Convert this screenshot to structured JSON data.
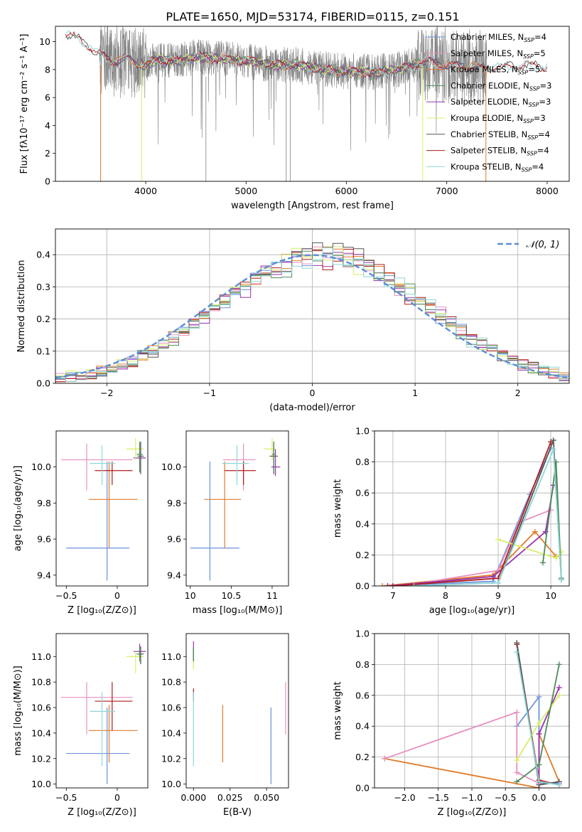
{
  "figure_title": "PLATE=1650, MJD=53174, FIBERID=0115, z=0.151",
  "colors": {
    "blue": "#6a93dc",
    "orange": "#e07b2a",
    "pink": "#e890bf",
    "purple": "#9a32b0",
    "red": "#b01c1c",
    "yellow": "#d8ee66",
    "grey": "#555555",
    "green": "#4d8a5a",
    "cyan": "#8fd6d6",
    "gray_data": "#808080",
    "dashed": "#5b8ed6",
    "grid": "#b0b0b0"
  },
  "chart_data": [
    {
      "id": "spectrum",
      "type": "line",
      "xlabel": "wavelength [Angstrom, rest frame]",
      "ylabel": "Flux [fλ10⁻¹⁷ erg cm⁻² s⁻¹ A⁻¹]",
      "xlim": [
        3100,
        8220
      ],
      "ylim": [
        0,
        11.1
      ],
      "xticks": [
        4000,
        5000,
        6000,
        7000,
        8000
      ],
      "yticks": [
        0,
        2,
        4,
        6,
        8,
        10
      ],
      "grid": false,
      "legend_position": "top-right",
      "legend": [
        {
          "label": "Chabrier MILES, N",
          "sub": "SSP",
          "tail": "=4",
          "color": "blue"
        },
        {
          "label": "Salpeter MILES, N",
          "sub": "SSP",
          "tail": "=5",
          "color": "pink"
        },
        {
          "label": "Kroupa MILES, N",
          "sub": "SSP",
          "tail": "=5",
          "color": "orange"
        },
        {
          "label": "Chabrier ELODIE, N",
          "sub": "SSP",
          "tail": "=3",
          "color": "green"
        },
        {
          "label": "Salpeter ELODIE, N",
          "sub": "SSP",
          "tail": "=3",
          "color": "purple"
        },
        {
          "label": "Kroupa ELODIE, N",
          "sub": "SSP",
          "tail": "=3",
          "color": "yellow"
        },
        {
          "label": "Chabrier STELIB, N",
          "sub": "SSP",
          "tail": "=4",
          "color": "grey"
        },
        {
          "label": "Salpeter STELIB, N",
          "sub": "SSP",
          "tail": "=4",
          "color": "red"
        },
        {
          "label": "Kroupa STELIB, N",
          "sub": "SSP",
          "tail": "=4",
          "color": "cyan"
        }
      ],
      "observed_range": [
        3540,
        7400
      ],
      "model_ranges": {
        "MILES": [
          3540,
          7400
        ],
        "ELODIE": [
          3950,
          6750
        ],
        "STELIB": [
          3200,
          8000
        ]
      },
      "continuum": [
        [
          3200,
          10.6
        ],
        [
          3300,
          10.3
        ],
        [
          3400,
          9.9
        ],
        [
          3550,
          9.0
        ],
        [
          3700,
          8.6
        ],
        [
          3800,
          8.8
        ],
        [
          3900,
          8.5
        ],
        [
          4000,
          8.3
        ],
        [
          4100,
          8.7
        ],
        [
          4300,
          8.6
        ],
        [
          4500,
          8.9
        ],
        [
          4700,
          8.8
        ],
        [
          4900,
          8.7
        ],
        [
          5100,
          8.5
        ],
        [
          5300,
          8.3
        ],
        [
          5500,
          8.4
        ],
        [
          5700,
          8.1
        ],
        [
          5900,
          7.9
        ],
        [
          6100,
          7.9
        ],
        [
          6300,
          7.8
        ],
        [
          6500,
          8.0
        ],
        [
          6700,
          8.4
        ],
        [
          6800,
          8.6
        ],
        [
          7000,
          8.3
        ],
        [
          7200,
          8.2
        ],
        [
          7400,
          8.1
        ],
        [
          7600,
          8.2
        ],
        [
          7800,
          8.3
        ],
        [
          8000,
          8.2
        ]
      ]
    },
    {
      "id": "residuals",
      "type": "histogram",
      "xlabel": "(data-model)/error",
      "ylabel": "Normed distribution",
      "xlim": [
        -2.5,
        2.5
      ],
      "ylim": [
        0,
        0.48
      ],
      "xticks": [
        -2,
        -1,
        0,
        1,
        2
      ],
      "yticks": [
        0,
        0.1,
        0.2,
        0.3,
        0.4
      ],
      "xtick_labels": [
        "−2",
        "−1",
        "0",
        "1",
        "2"
      ],
      "grid": true,
      "legend_position": "top-right",
      "legend": [
        {
          "label": "𝒩(0, 1)",
          "style": "dashed",
          "color": "dashed"
        }
      ],
      "bin_width": 0.1,
      "x_start": -2.5,
      "gaussian": {
        "mean": 0,
        "sigma": 1
      }
    },
    {
      "id": "age_vs_Z",
      "type": "errorbar",
      "xlabel": "Z [log₁₀(Z/Z⊙)]",
      "ylabel": "age  [log₁₀(age/yr)]",
      "xlim": [
        -0.6,
        0.3
      ],
      "ylim": [
        9.34,
        10.2
      ],
      "xticks": [
        -0.5,
        0.0
      ],
      "yticks": [
        9.4,
        9.6,
        9.8,
        10.0
      ],
      "grid": false,
      "points": [
        {
          "color": "blue",
          "x": -0.1,
          "xerr": [
            0.4,
            0.22
          ],
          "y": 9.55,
          "yerr": [
            0.18,
            0.48
          ]
        },
        {
          "color": "orange",
          "x": -0.08,
          "xerr": [
            0.2,
            0.28
          ],
          "y": 9.82,
          "yerr": [
            0.27,
            0.21
          ]
        },
        {
          "color": "pink",
          "x": -0.3,
          "xerr": [
            0.25,
            0.45
          ],
          "y": 10.04,
          "yerr": [
            0.17,
            0.09
          ]
        },
        {
          "color": "purple",
          "x": 0.22,
          "xerr": [
            0.06,
            0.06
          ],
          "y": 10.05,
          "yerr": [
            0.07,
            0.08
          ]
        },
        {
          "color": "red",
          "x": -0.05,
          "xerr": [
            0.17,
            0.2
          ],
          "y": 9.98,
          "yerr": [
            0.08,
            0.05
          ]
        },
        {
          "color": "yellow",
          "x": 0.18,
          "xerr": [
            0.09,
            0.08
          ],
          "y": 10.1,
          "yerr": [
            0.06,
            0.06
          ]
        },
        {
          "color": "grey",
          "x": 0.23,
          "xerr": [
            0.03,
            0.03
          ],
          "y": 10.06,
          "yerr": [
            0.1,
            0.08
          ]
        },
        {
          "color": "green",
          "x": 0.22,
          "xerr": [
            0.03,
            0.03
          ],
          "y": 10.07,
          "yerr": [
            0.1,
            0.07
          ]
        },
        {
          "color": "cyan",
          "x": -0.15,
          "xerr": [
            0.12,
            0.13
          ],
          "y": 10.02,
          "yerr": [
            0.12,
            0.1
          ]
        }
      ]
    },
    {
      "id": "age_vs_mass",
      "type": "errorbar",
      "xlabel": "mass [log₁₀(M/M⊙)]",
      "ylabel": "",
      "xlim": [
        9.95,
        11.2
      ],
      "ylim": [
        9.34,
        10.2
      ],
      "xticks": [
        10.0,
        10.5,
        11.0
      ],
      "yticks": [
        9.4,
        9.6,
        9.8,
        10.0
      ],
      "grid": false,
      "points": [
        {
          "color": "blue",
          "x": 10.24,
          "xerr": [
            0.24,
            0.36
          ],
          "y": 9.55,
          "yerr": [
            0.18,
            0.48
          ]
        },
        {
          "color": "orange",
          "x": 10.42,
          "xerr": [
            0.25,
            0.2
          ],
          "y": 9.82,
          "yerr": [
            0.27,
            0.21
          ]
        },
        {
          "color": "pink",
          "x": 10.65,
          "xerr": [
            0.25,
            0.15
          ],
          "y": 10.04,
          "yerr": [
            0.17,
            0.09
          ]
        },
        {
          "color": "purple",
          "x": 11.04,
          "xerr": [
            0.05,
            0.06
          ],
          "y": 10.0,
          "yerr": [
            0.05,
            0.1
          ]
        },
        {
          "color": "red",
          "x": 10.65,
          "xerr": [
            0.23,
            0.15
          ],
          "y": 9.98,
          "yerr": [
            0.08,
            0.05
          ]
        },
        {
          "color": "yellow",
          "x": 11.0,
          "xerr": [
            0.1,
            0.04
          ],
          "y": 10.1,
          "yerr": [
            0.06,
            0.06
          ]
        },
        {
          "color": "grey",
          "x": 11.02,
          "xerr": [
            0.05,
            0.05
          ],
          "y": 10.06,
          "yerr": [
            0.1,
            0.08
          ]
        },
        {
          "color": "green",
          "x": 11.02,
          "xerr": [
            0.02,
            0.02
          ],
          "y": 10.07,
          "yerr": [
            0.1,
            0.07
          ]
        },
        {
          "color": "cyan",
          "x": 10.57,
          "xerr": [
            0.18,
            0.15
          ],
          "y": 10.02,
          "yerr": [
            0.12,
            0.1
          ]
        }
      ]
    },
    {
      "id": "massweight_vs_age",
      "type": "line",
      "xlabel": "age  [log₁₀(age/yr)]",
      "ylabel": "mass weight",
      "xlim": [
        6.65,
        10.35
      ],
      "ylim": [
        0,
        1.0
      ],
      "xticks": [
        7,
        8,
        9,
        10
      ],
      "yticks": [
        0,
        0.2,
        0.4,
        0.6,
        0.8,
        1.0
      ],
      "grid": true,
      "series": [
        {
          "color": "blue",
          "x": [
            6.9,
            8.9,
            9.6,
            10.0
          ],
          "y": [
            0.0,
            0.03,
            0.59,
            0.89
          ]
        },
        {
          "color": "orange",
          "x": [
            6.8,
            8.9,
            9.7,
            10.1
          ],
          "y": [
            0.0,
            0.07,
            0.35,
            0.19
          ]
        },
        {
          "color": "pink",
          "x": [
            7.2,
            9.0,
            9.4,
            10.0
          ],
          "y": [
            0.0,
            0.1,
            0.41,
            0.49
          ]
        },
        {
          "color": "purple",
          "x": [
            6.9,
            8.9,
            9.9,
            10.05
          ],
          "y": [
            0.0,
            0.06,
            0.35,
            0.65
          ]
        },
        {
          "color": "red",
          "x": [
            7.0,
            9.0,
            10.0
          ],
          "y": [
            0.0,
            0.05,
            0.93
          ]
        },
        {
          "color": "yellow",
          "x": [
            9.0,
            10.1,
            10.2
          ],
          "y": [
            0.3,
            0.18,
            0.22
          ]
        },
        {
          "color": "grey",
          "x": [
            9.0,
            10.05,
            10.2
          ],
          "y": [
            0.02,
            0.94,
            0.04
          ]
        },
        {
          "color": "green",
          "x": [
            9.85,
            10.1,
            10.2
          ],
          "y": [
            0.15,
            0.8,
            0.05
          ]
        },
        {
          "color": "cyan",
          "x": [
            7.4,
            9.0,
            10.05,
            10.2
          ],
          "y": [
            0.0,
            0.02,
            0.88,
            0.04
          ]
        }
      ]
    },
    {
      "id": "mass_vs_Z",
      "type": "errorbar",
      "xlabel": "Z [log₁₀(Z/Z⊙)]",
      "ylabel": "mass [log₁₀(M/M⊙)]",
      "xlim": [
        -0.6,
        0.3
      ],
      "ylim": [
        9.97,
        11.18
      ],
      "xticks": [
        -0.5,
        0.0
      ],
      "yticks": [
        10.0,
        10.2,
        10.4,
        10.6,
        10.8,
        11.0
      ],
      "grid": false,
      "points": [
        {
          "color": "blue",
          "x": -0.1,
          "xerr": [
            0.4,
            0.22
          ],
          "y": 10.24,
          "yerr": [
            0.24,
            0.36
          ]
        },
        {
          "color": "orange",
          "x": -0.08,
          "xerr": [
            0.2,
            0.28
          ],
          "y": 10.42,
          "yerr": [
            0.25,
            0.2
          ]
        },
        {
          "color": "pink",
          "x": -0.3,
          "xerr": [
            0.25,
            0.45
          ],
          "y": 10.68,
          "yerr": [
            0.29,
            0.12
          ]
        },
        {
          "color": "purple",
          "x": 0.22,
          "xerr": [
            0.06,
            0.06
          ],
          "y": 11.04,
          "yerr": [
            0.05,
            0.06
          ]
        },
        {
          "color": "red",
          "x": -0.05,
          "xerr": [
            0.17,
            0.2
          ],
          "y": 10.65,
          "yerr": [
            0.23,
            0.15
          ]
        },
        {
          "color": "yellow",
          "x": 0.18,
          "xerr": [
            0.09,
            0.08
          ],
          "y": 11.0,
          "yerr": [
            0.13,
            0.04
          ]
        },
        {
          "color": "grey",
          "x": 0.23,
          "xerr": [
            0.03,
            0.03
          ],
          "y": 11.02,
          "yerr": [
            0.08,
            0.06
          ]
        },
        {
          "color": "green",
          "x": 0.22,
          "xerr": [
            0.03,
            0.03
          ],
          "y": 11.02,
          "yerr": [
            0.06,
            0.05
          ]
        },
        {
          "color": "cyan",
          "x": -0.15,
          "xerr": [
            0.12,
            0.13
          ],
          "y": 10.57,
          "yerr": [
            0.43,
            0.15
          ]
        }
      ]
    },
    {
      "id": "mass_vs_EBV",
      "type": "errorbar",
      "xlabel": "E(B-V)",
      "ylabel": "",
      "xlim": [
        -0.005,
        0.065
      ],
      "ylim": [
        9.97,
        11.18
      ],
      "xticks": [
        0.0,
        0.025,
        0.05
      ],
      "yticks": [
        10.0,
        10.2,
        10.4,
        10.6,
        10.8,
        11.0
      ],
      "xtick_labels": [
        "0.000",
        "0.025",
        "0.050"
      ],
      "grid": false,
      "points": [
        {
          "color": "blue",
          "x": 0.053,
          "xerr": [
            0,
            0
          ],
          "y": 10.24,
          "yerr": [
            0.24,
            0.36
          ]
        },
        {
          "color": "orange",
          "x": 0.02,
          "xerr": [
            0,
            0
          ],
          "y": 10.42,
          "yerr": [
            0.25,
            0.2
          ]
        },
        {
          "color": "pink",
          "x": 0.063,
          "xerr": [
            0,
            0
          ],
          "y": 10.68,
          "yerr": [
            0.29,
            0.12
          ]
        },
        {
          "color": "purple",
          "x": 0.0,
          "xerr": [
            0,
            0
          ],
          "y": 11.04,
          "yerr": [
            0.05,
            0.08
          ]
        },
        {
          "color": "red",
          "x": 0.0,
          "xerr": [
            0,
            0
          ],
          "y": 10.7,
          "yerr": [
            0.05,
            0.05
          ]
        },
        {
          "color": "yellow",
          "x": 0.0,
          "xerr": [
            0,
            0
          ],
          "y": 11.0,
          "yerr": [
            0.1,
            0.05
          ]
        },
        {
          "color": "grey",
          "x": 0.0,
          "xerr": [
            0,
            0
          ],
          "y": 11.02,
          "yerr": [
            0.05,
            0.05
          ]
        },
        {
          "color": "green",
          "x": 0.0,
          "xerr": [
            0,
            0
          ],
          "y": 11.02,
          "yerr": [
            0.06,
            0.05
          ]
        },
        {
          "color": "cyan",
          "x": 0.0,
          "xerr": [
            0,
            0
          ],
          "y": 10.57,
          "yerr": [
            0.43,
            0.15
          ]
        }
      ]
    },
    {
      "id": "massweight_vs_Z",
      "type": "line",
      "xlabel": "Z [log₁₀(Z/Z⊙)]",
      "ylabel": "mass weight",
      "xlim": [
        -2.45,
        0.45
      ],
      "ylim": [
        0,
        1.0
      ],
      "xticks": [
        -2.0,
        -1.5,
        -1.0,
        -0.5,
        0.0
      ],
      "xtick_labels": [
        "−2.0",
        "−1.5",
        "−1.0",
        "−0.5",
        "0.0"
      ],
      "yticks": [
        0,
        0.2,
        0.4,
        0.6,
        0.8,
        1.0
      ],
      "grid": true,
      "series": [
        {
          "color": "blue",
          "x": [
            -0.33,
            0.0,
            0.0,
            0.3
          ],
          "y": [
            0.4,
            0.59,
            0.03,
            0.03
          ]
        },
        {
          "color": "orange",
          "x": [
            -2.3,
            0.0,
            0.0,
            0.3
          ],
          "y": [
            0.19,
            0.0,
            0.35,
            0.04
          ]
        },
        {
          "color": "pink",
          "x": [
            -2.3,
            -0.33,
            -0.33,
            0.0
          ],
          "y": [
            0.19,
            0.49,
            0.1,
            0.03
          ]
        },
        {
          "color": "purple",
          "x": [
            0.0,
            0.0,
            0.3
          ],
          "y": [
            0.0,
            0.35,
            0.65
          ]
        },
        {
          "color": "red",
          "x": [
            -0.33,
            0.0,
            0.3
          ],
          "y": [
            0.93,
            0.05,
            0.02
          ]
        },
        {
          "color": "yellow",
          "x": [
            -0.33,
            0.0,
            0.3
          ],
          "y": [
            0.18,
            0.42,
            0.6
          ]
        },
        {
          "color": "grey",
          "x": [
            -0.33,
            0.0,
            0.3
          ],
          "y": [
            0.94,
            0.02,
            0.04
          ]
        },
        {
          "color": "green",
          "x": [
            -0.33,
            0.0,
            0.3
          ],
          "y": [
            0.04,
            0.15,
            0.8
          ]
        },
        {
          "color": "cyan",
          "x": [
            -0.33,
            0.0,
            0.3
          ],
          "y": [
            0.88,
            0.04,
            0.02
          ]
        }
      ]
    }
  ]
}
